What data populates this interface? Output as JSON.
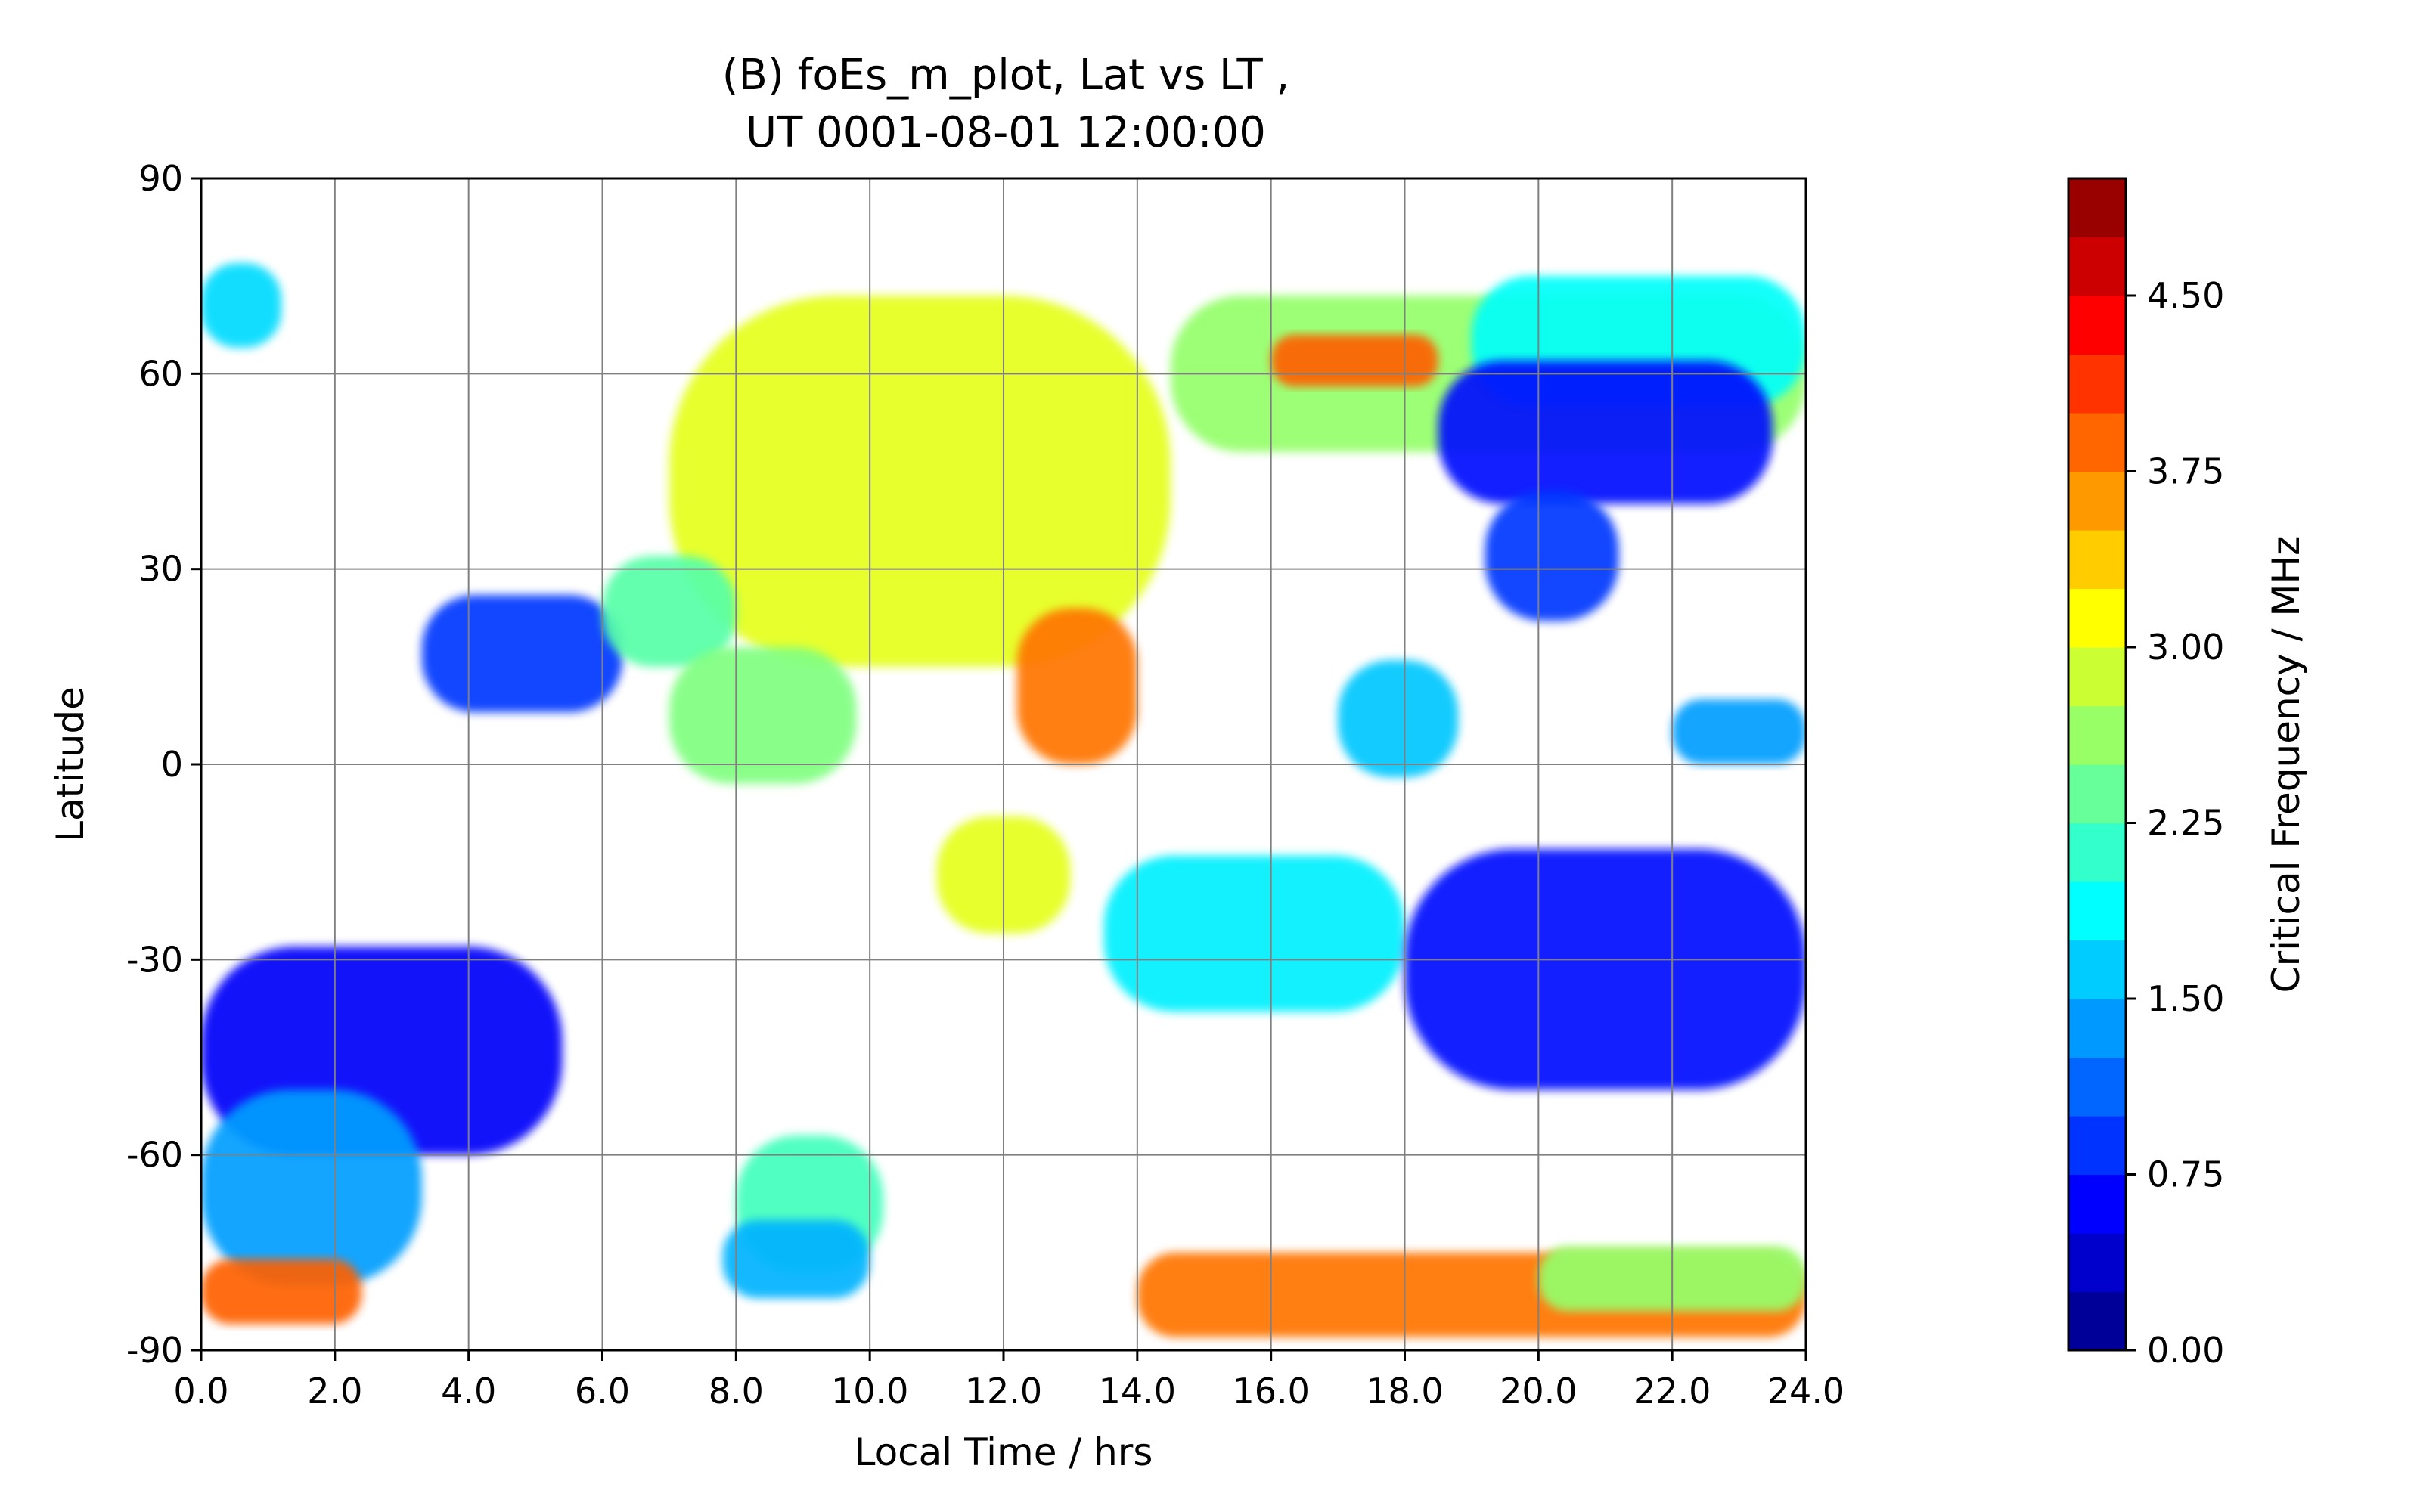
{
  "chart_data": {
    "type": "contourf",
    "title_line1": "(B) foEs_m_plot, Lat vs LT ,",
    "title_line2": "UT 0001-08-01 12:00:00",
    "xlabel": "Local Time / hrs",
    "ylabel": "Latitude",
    "xlim": [
      0,
      24
    ],
    "ylim": [
      -90,
      90
    ],
    "grid": true,
    "x_ticks": [
      0,
      2,
      4,
      6,
      8,
      10,
      12,
      14,
      16,
      18,
      20,
      22,
      24
    ],
    "x_tick_labels": [
      "0.0",
      "2.0",
      "4.0",
      "6.0",
      "8.0",
      "10.0",
      "12.0",
      "14.0",
      "16.0",
      "18.0",
      "20.0",
      "22.0",
      "24.0"
    ],
    "y_ticks": [
      -90,
      -60,
      -30,
      0,
      30,
      60,
      90
    ],
    "y_tick_labels": [
      "-90",
      "-60",
      "-30",
      "0",
      "30",
      "60",
      "90"
    ],
    "colorbar": {
      "label": "Critical Frequency / MHz",
      "range": [
        0,
        5
      ],
      "levels": 20,
      "ticks": [
        0,
        0.75,
        1.5,
        2.25,
        3.0,
        3.75,
        4.5
      ],
      "tick_labels": [
        "0.00",
        "0.75",
        "1.50",
        "2.25",
        "3.00",
        "3.75",
        "4.50"
      ],
      "colormap": "jet"
    },
    "regions": [
      {
        "name": "high-lat-north-band",
        "x": [
          14.5,
          24
        ],
        "y": [
          48,
          72
        ],
        "value": 2.6
      },
      {
        "name": "north-band-cyan",
        "x": [
          19,
          24
        ],
        "y": [
          55,
          75
        ],
        "value": 1.9
      },
      {
        "name": "north-band-orange-edge",
        "x": [
          16,
          18.5
        ],
        "y": [
          58,
          66
        ],
        "value": 3.9
      },
      {
        "name": "north-band-blue",
        "x": [
          18.5,
          23.5
        ],
        "y": [
          40,
          62
        ],
        "value": 0.7
      },
      {
        "name": "north-band-blue-tail",
        "x": [
          19.2,
          21.2
        ],
        "y": [
          22,
          42
        ],
        "value": 0.9
      },
      {
        "name": "top-left-patch",
        "x": [
          0,
          1.2
        ],
        "y": [
          64,
          77
        ],
        "value": 1.7
      },
      {
        "name": "mid-north-yellow",
        "x": [
          7,
          14.5
        ],
        "y": [
          15,
          72
        ],
        "value": 3.0
      },
      {
        "name": "central-orange",
        "x": [
          12.2,
          14
        ],
        "y": [
          0,
          24
        ],
        "value": 3.8
      },
      {
        "name": "left-mid-blue",
        "x": [
          3.3,
          6.3
        ],
        "y": [
          8,
          26
        ],
        "value": 0.9
      },
      {
        "name": "left-mid-green",
        "x": [
          6,
          8
        ],
        "y": [
          15,
          32
        ],
        "value": 2.3
      },
      {
        "name": "equator-green",
        "x": [
          7,
          9.8
        ],
        "y": [
          -3,
          18
        ],
        "value": 2.5
      },
      {
        "name": "right-cyan-ring",
        "x": [
          17,
          18.8
        ],
        "y": [
          -2,
          16
        ],
        "value": 1.6
      },
      {
        "name": "east-equator-band",
        "x": [
          22,
          24
        ],
        "y": [
          0,
          10
        ],
        "value": 1.4
      },
      {
        "name": "south-mid-yellow",
        "x": [
          11,
          13
        ],
        "y": [
          -26,
          -8
        ],
        "value": 3.0
      },
      {
        "name": "south-mid-cyan",
        "x": [
          13.5,
          18
        ],
        "y": [
          -38,
          -14
        ],
        "value": 1.8
      },
      {
        "name": "south-right-blue-arch",
        "x": [
          18,
          24
        ],
        "y": [
          -50,
          -13
        ],
        "value": 0.7
      },
      {
        "name": "south-left-blue",
        "x": [
          0,
          5.4
        ],
        "y": [
          -60,
          -28
        ],
        "value": 0.6
      },
      {
        "name": "south-left-blue-diag",
        "x": [
          0,
          3.3
        ],
        "y": [
          -80,
          -50
        ],
        "value": 1.4
      },
      {
        "name": "south-left-orange",
        "x": [
          0,
          2.4
        ],
        "y": [
          -86,
          -76
        ],
        "value": 3.9
      },
      {
        "name": "south-mid-patches",
        "x": [
          8,
          10.2
        ],
        "y": [
          -78,
          -57
        ],
        "value": 2.2
      },
      {
        "name": "south-blue-streak",
        "x": [
          7.8,
          10
        ],
        "y": [
          -82,
          -70
        ],
        "value": 1.5
      },
      {
        "name": "bottom-orange-band",
        "x": [
          14,
          24
        ],
        "y": [
          -88,
          -75
        ],
        "value": 3.8
      },
      {
        "name": "bottom-right-green",
        "x": [
          20,
          24
        ],
        "y": [
          -84,
          -74
        ],
        "value": 2.6
      }
    ]
  }
}
